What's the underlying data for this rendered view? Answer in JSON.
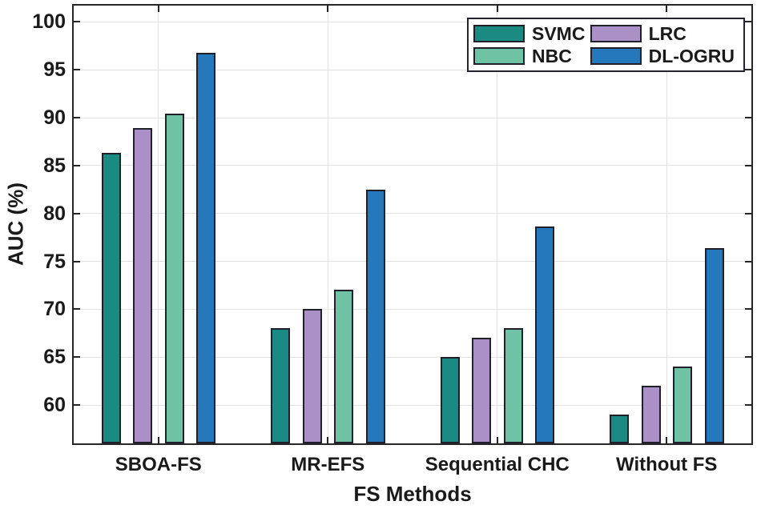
{
  "chart_data": {
    "type": "bar",
    "title": "",
    "xlabel": "FS Methods",
    "ylabel": "AUC (%)",
    "categories": [
      "SBOA-FS",
      "MR-EFS",
      "Sequential CHC",
      "Without FS"
    ],
    "series": [
      {
        "name": "SVMC",
        "color": "#1b8a83",
        "values": [
          86.3,
          68.0,
          65.0,
          59.0
        ]
      },
      {
        "name": "LRC",
        "color": "#ab8fc7",
        "values": [
          88.9,
          70.0,
          67.0,
          62.0
        ]
      },
      {
        "name": "NBC",
        "color": "#6fc2a4",
        "values": [
          90.4,
          72.0,
          68.0,
          64.0
        ]
      },
      {
        "name": "DL-OGRU",
        "color": "#2678bd",
        "values": [
          96.8,
          82.5,
          78.6,
          76.4
        ]
      }
    ],
    "legend": {
      "position": "top-right",
      "columns": 2,
      "order": [
        "SVMC",
        "NBC",
        "LRC",
        "DL-OGRU"
      ]
    },
    "yticks": [
      60,
      65,
      70,
      75,
      80,
      85,
      90,
      95,
      100
    ],
    "ylim": [
      56.0,
      101.7
    ],
    "grid": true,
    "colors": {
      "axis": "#262626",
      "grid": "#e2e2e2",
      "bar_edge": "#20202a",
      "text": "#1a1a1a",
      "background": "#ffffff"
    }
  }
}
